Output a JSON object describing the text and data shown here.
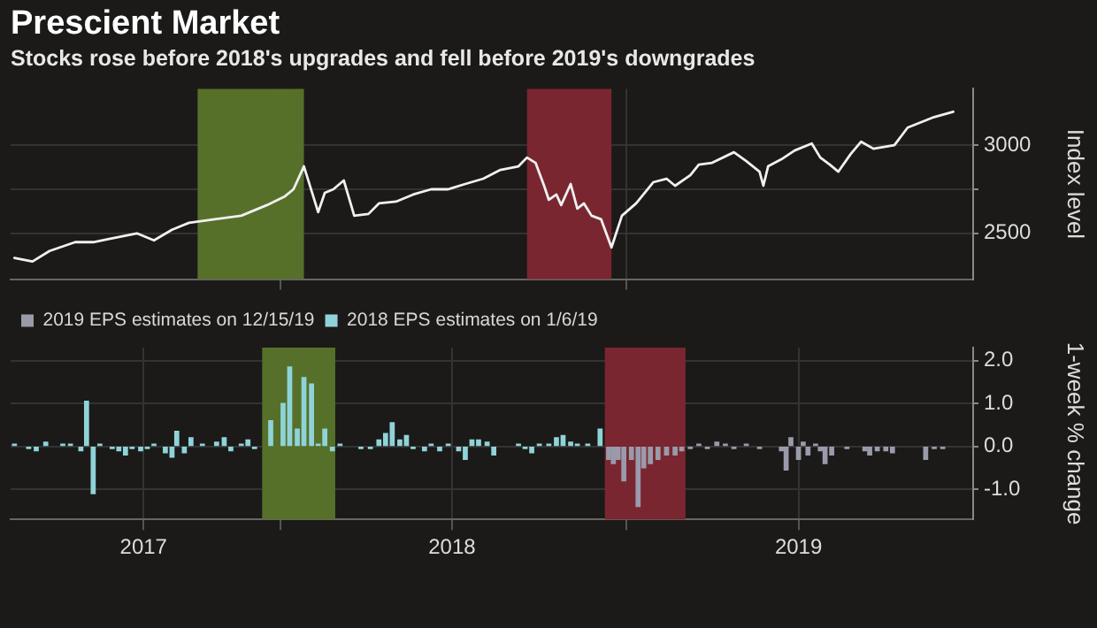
{
  "chart_data": [
    {
      "type": "line",
      "title": "Prescient Market",
      "subtitle": "Stocks rose before 2018's upgrades and fell before 2019's downgrades",
      "ylabel": "Index level",
      "xlim": [
        "2017-03-23",
        "2020-01-01"
      ],
      "xticks": [
        {
          "value": "2018",
          "label": null
        },
        {
          "value": "2019",
          "label": null
        }
      ],
      "ylim": [
        2240,
        3320
      ],
      "yticks": [
        2500,
        {
          "value": 2750,
          "label": null
        },
        3000
      ],
      "grid": true,
      "tick_labels": "y",
      "legend": false,
      "bands": [
        {
          "axis": "x",
          "from": "2017-10-06",
          "to": "2018-01-26",
          "color": "#56702a"
        },
        {
          "axis": "x",
          "from": "2018-09-18",
          "to": "2018-12-16",
          "color": "#7a2630"
        }
      ],
      "series": [
        {
          "color": "#f0f0f0",
          "x": [
            "2017-03-27",
            "2017-04-15",
            "2017-05-03",
            "2017-05-30",
            "2017-06-18",
            "2017-07-06",
            "2017-08-03",
            "2017-08-21",
            "2017-09-09",
            "2017-09-27",
            "2017-10-24",
            "2017-11-21",
            "2017-12-18",
            "2018-01-06",
            "2018-01-15",
            "2018-01-26",
            "2018-02-10",
            "2018-02-17",
            "2018-02-26",
            "2018-03-09",
            "2018-03-20",
            "2018-04-04",
            "2018-04-15",
            "2018-05-03",
            "2018-05-21",
            "2018-06-09",
            "2018-06-27",
            "2018-07-15",
            "2018-08-03",
            "2018-08-21",
            "2018-09-09",
            "2018-09-18",
            "2018-09-27",
            "2018-10-06",
            "2018-10-11",
            "2018-10-19",
            "2018-10-24",
            "2018-11-03",
            "2018-11-10",
            "2018-11-17",
            "2018-11-25",
            "2018-12-05",
            "2018-12-16",
            "2018-12-27",
            "2019-01-11",
            "2019-01-29",
            "2019-02-12",
            "2019-02-21",
            "2019-03-09",
            "2019-03-18",
            "2019-04-01",
            "2019-04-24",
            "2019-05-07",
            "2019-05-21",
            "2019-05-25",
            "2019-05-30",
            "2019-06-13",
            "2019-06-27",
            "2019-07-15",
            "2019-07-24",
            "2019-08-03",
            "2019-08-12",
            "2019-08-25",
            "2019-09-05",
            "2019-09-18",
            "2019-10-10",
            "2019-10-24",
            "2019-11-07",
            "2019-11-21",
            "2019-12-11"
          ],
          "values": [
            2360,
            2340,
            2400,
            2450,
            2450,
            2470,
            2500,
            2460,
            2520,
            2560,
            2580,
            2600,
            2660,
            2710,
            2750,
            2880,
            2620,
            2730,
            2750,
            2800,
            2600,
            2610,
            2670,
            2680,
            2720,
            2750,
            2750,
            2780,
            2810,
            2860,
            2880,
            2930,
            2900,
            2770,
            2690,
            2720,
            2660,
            2780,
            2640,
            2670,
            2600,
            2580,
            2420,
            2600,
            2670,
            2790,
            2810,
            2770,
            2830,
            2890,
            2900,
            2960,
            2910,
            2850,
            2770,
            2880,
            2920,
            2970,
            3010,
            2930,
            2890,
            2850,
            2950,
            3020,
            2980,
            3000,
            3100,
            3130,
            3160,
            3190
          ]
        }
      ]
    },
    {
      "type": "bar",
      "ylabel": "1-week % change",
      "xlim": [
        "2017-03-23",
        "2020-01-01"
      ],
      "xticks": [
        {
          "value": "2017-08-10",
          "label": "2017"
        },
        {
          "value": "2018",
          "label": null
        },
        {
          "value": "2018-07-01",
          "label": "2018"
        },
        {
          "value": "2019",
          "label": null
        },
        {
          "value": "2019-07-01",
          "label": "2019"
        }
      ],
      "ylim": [
        -1.7,
        2.3
      ],
      "yticks": [
        {
          "value": -1,
          "label": "-1.0"
        },
        {
          "value": 0,
          "label": "0.0"
        },
        {
          "value": 1,
          "label": "1.0"
        },
        {
          "value": 2,
          "label": "2.0"
        }
      ],
      "grid": true,
      "legend": "top left",
      "bands": [
        {
          "axis": "x",
          "from": "2017-12-13",
          "to": "2018-02-28",
          "color": "#56702a"
        },
        {
          "axis": "x",
          "from": "2018-12-09",
          "to": "2019-03-04",
          "color": "#7a2630"
        }
      ],
      "series": [
        {
          "name": "2019 EPS estimates on 12/15/19",
          "color": "#9a9aaa",
          "x": [
            "2018-12-13",
            "2018-12-18",
            "2018-12-23",
            "2018-12-29",
            "2019-01-06",
            "2019-01-13",
            "2019-01-19",
            "2019-01-26",
            "2019-02-03",
            "2019-02-12",
            "2019-02-21",
            "2019-02-28",
            "2019-03-09",
            "2019-03-18",
            "2019-03-27",
            "2019-04-06",
            "2019-04-15",
            "2019-04-24",
            "2019-05-07",
            "2019-05-21",
            "2019-06-13",
            "2019-06-18",
            "2019-06-23",
            "2019-07-01",
            "2019-07-06",
            "2019-07-11",
            "2019-07-19",
            "2019-07-24",
            "2019-07-29",
            "2019-08-05",
            "2019-08-21",
            "2019-09-09",
            "2019-09-14",
            "2019-09-22",
            "2019-10-01",
            "2019-10-08",
            "2019-11-12",
            "2019-11-21",
            "2019-11-30"
          ],
          "values": [
            -0.3,
            -0.4,
            -0.3,
            -0.8,
            -0.3,
            -1.4,
            -0.5,
            -0.4,
            -0.3,
            -0.2,
            -0.2,
            -0.1,
            -0.05,
            0.05,
            -0.05,
            0.1,
            0.05,
            -0.05,
            0.05,
            -0.05,
            -0.1,
            -0.55,
            0.2,
            -0.3,
            0.1,
            -0.2,
            0.05,
            -0.1,
            -0.4,
            -0.2,
            -0.05,
            -0.1,
            -0.2,
            -0.1,
            -0.1,
            -0.15,
            -0.3,
            -0.05,
            -0.05
          ]
        },
        {
          "name": "2018 EPS estimates on 1/6/19",
          "color": "#8fd3d8",
          "x": [
            "2017-03-27",
            "2017-04-11",
            "2017-04-19",
            "2017-04-29",
            "2017-05-17",
            "2017-05-25",
            "2017-06-05",
            "2017-06-11",
            "2017-06-18",
            "2017-06-25",
            "2017-07-08",
            "2017-07-15",
            "2017-07-22",
            "2017-07-29",
            "2017-08-07",
            "2017-08-14",
            "2017-08-21",
            "2017-09-02",
            "2017-09-09",
            "2017-09-14",
            "2017-09-22",
            "2017-09-29",
            "2017-10-11",
            "2017-10-26",
            "2017-11-03",
            "2017-11-10",
            "2017-11-21",
            "2017-11-28",
            "2017-12-05",
            "2017-12-22",
            "2018-01-04",
            "2018-01-11",
            "2018-01-19",
            "2018-01-26",
            "2018-02-03",
            "2018-02-10",
            "2018-02-17",
            "2018-02-25",
            "2018-03-05",
            "2018-03-27",
            "2018-04-06",
            "2018-04-15",
            "2018-04-22",
            "2018-04-29",
            "2018-05-07",
            "2018-05-14",
            "2018-05-21",
            "2018-06-02",
            "2018-06-09",
            "2018-06-18",
            "2018-06-27",
            "2018-07-08",
            "2018-07-15",
            "2018-07-22",
            "2018-07-29",
            "2018-08-07",
            "2018-08-14",
            "2018-09-09",
            "2018-09-16",
            "2018-09-23",
            "2018-10-01",
            "2018-10-11",
            "2018-10-19",
            "2018-10-26",
            "2018-11-03",
            "2018-11-10",
            "2018-11-21",
            "2018-12-04"
          ],
          "values": [
            0.05,
            -0.05,
            -0.1,
            0.1,
            0.05,
            0.05,
            -0.1,
            1.05,
            -1.1,
            0.05,
            -0.05,
            -0.1,
            -0.2,
            -0.05,
            -0.1,
            -0.05,
            0.05,
            -0.15,
            -0.25,
            0.35,
            -0.15,
            0.2,
            0.05,
            0.1,
            0.2,
            -0.1,
            0.05,
            0.15,
            -0.05,
            0.6,
            1.0,
            1.85,
            0.4,
            1.6,
            1.45,
            0.05,
            0.4,
            -0.1,
            0.05,
            -0.05,
            -0.05,
            0.15,
            0.3,
            0.55,
            0.15,
            0.25,
            -0.05,
            -0.1,
            0.05,
            -0.1,
            0.05,
            -0.1,
            -0.3,
            0.15,
            0.15,
            0.1,
            -0.2,
            0.05,
            -0.05,
            -0.15,
            0.05,
            0.05,
            0.2,
            0.25,
            0.1,
            0.05,
            0.05,
            0.4
          ]
        }
      ]
    }
  ]
}
